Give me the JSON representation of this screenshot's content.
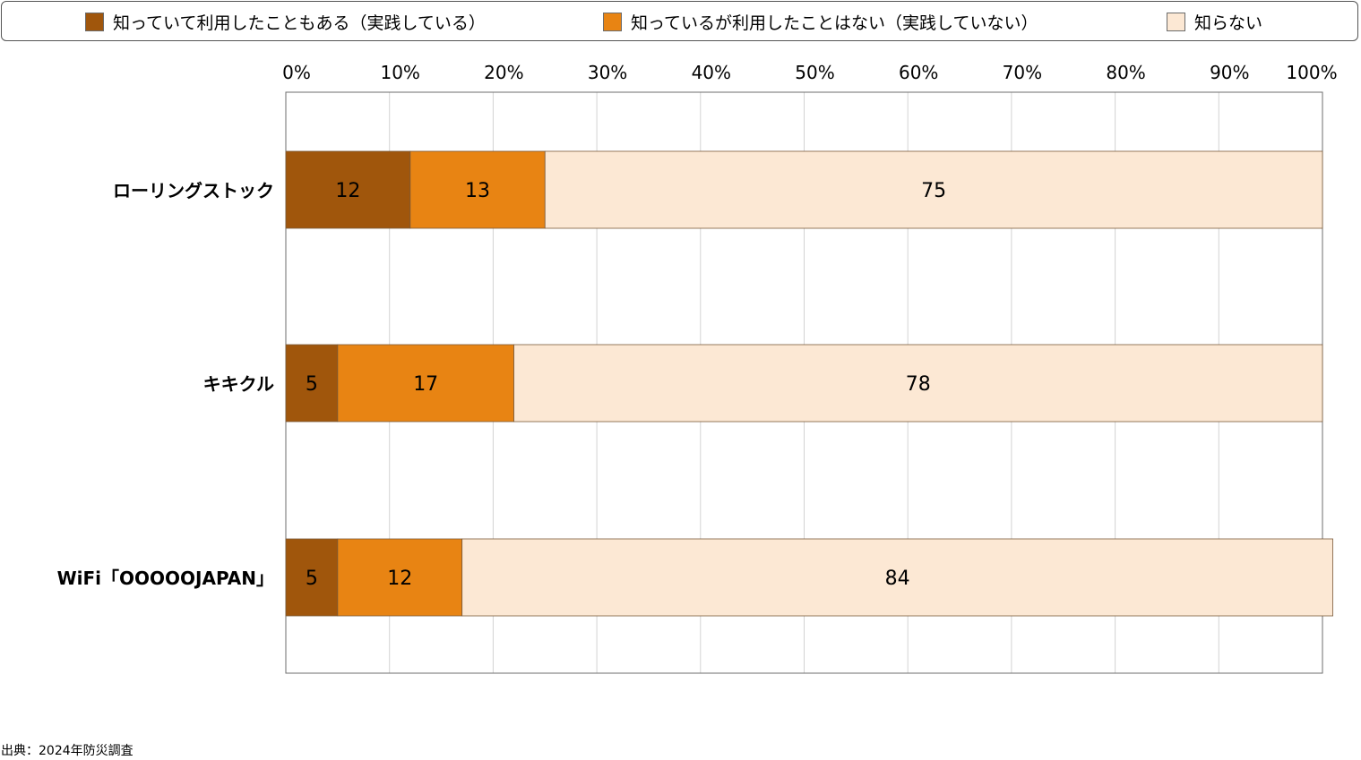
{
  "legend": {
    "items": [
      {
        "label": "知っていて利用したこともある（実践している）",
        "color": "#a0560c"
      },
      {
        "label": "知っているが利用したことはない（実践していない）",
        "color": "#e88413"
      },
      {
        "label": "知らない",
        "color": "#fce8d4"
      }
    ]
  },
  "chart_data": {
    "type": "bar",
    "orientation": "horizontal",
    "stacked": true,
    "categories": [
      "ローリングストック",
      "キキクル",
      "WiFi「OOOOOJAPAN」"
    ],
    "series": [
      {
        "name": "知っていて利用したこともある（実践している）",
        "values": [
          12,
          5,
          5
        ],
        "color": "#a0560c"
      },
      {
        "name": "知っているが利用したことはない（実践していない）",
        "values": [
          13,
          17,
          12
        ],
        "color": "#e88413"
      },
      {
        "name": "知らない",
        "values": [
          75,
          78,
          84
        ],
        "color": "#fce8d4"
      }
    ],
    "xlim": [
      0,
      100
    ],
    "x_ticks": [
      "0%",
      "10%",
      "20%",
      "30%",
      "40%",
      "50%",
      "60%",
      "70%",
      "80%",
      "90%",
      "100%"
    ],
    "grid": true,
    "legend_position": "top"
  },
  "source_note": "出典：2024年防災調査"
}
